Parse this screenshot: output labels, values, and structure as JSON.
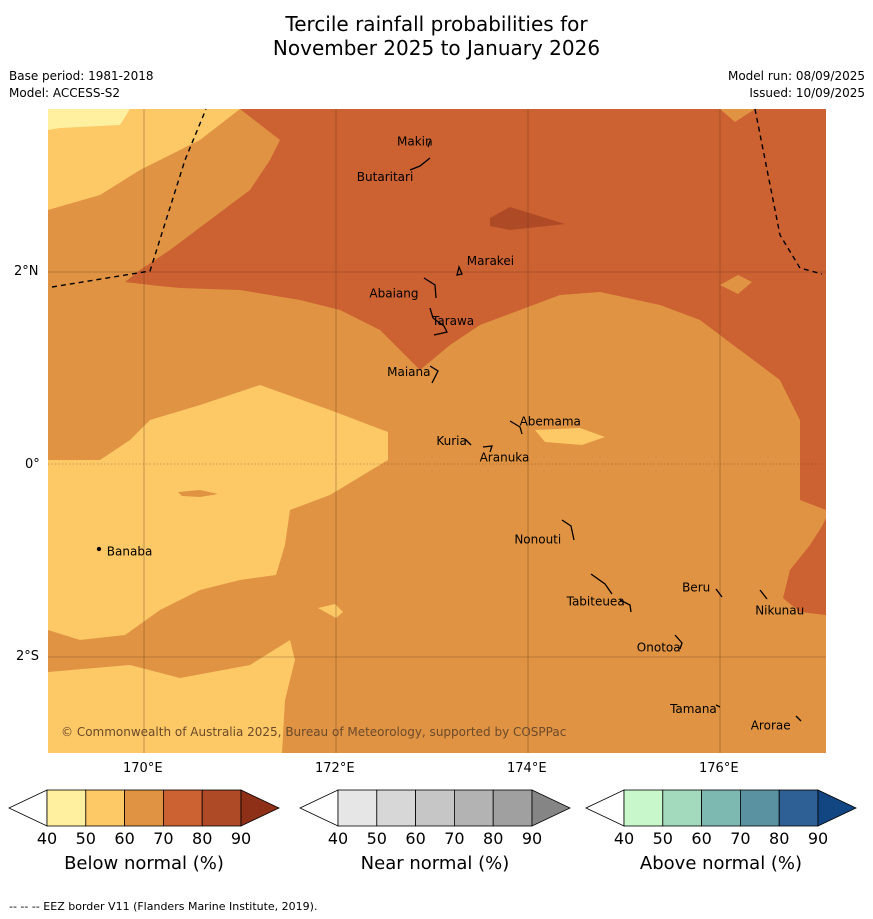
{
  "title_line1": "Tercile rainfall probabilities for",
  "title_line2": "November 2025 to January 2026",
  "meta": {
    "base_period": "Base period: 1981-2018",
    "model": "Model: ACCESS-S2",
    "model_run": "Model run: 08/09/2025",
    "issued": "Issued: 10/09/2025"
  },
  "axes": {
    "lon_ticks": [
      "170°E",
      "172°E",
      "174°E",
      "176°E"
    ],
    "lat_ticks": [
      "2°N",
      "0°",
      "2°S"
    ]
  },
  "places": [
    {
      "name": "Makin",
      "lon": 173.0,
      "lat": 3.35
    },
    {
      "name": "Butaritari",
      "lon": 172.8,
      "lat": 3.05
    },
    {
      "name": "Marakei",
      "lon": 173.3,
      "lat": 2.02
    },
    {
      "name": "Abaiang",
      "lon": 172.9,
      "lat": 1.85
    },
    {
      "name": "Tarawa",
      "lon": 173.0,
      "lat": 1.45
    },
    {
      "name": "Maiana",
      "lon": 172.97,
      "lat": 0.95
    },
    {
      "name": "Abemama",
      "lon": 173.85,
      "lat": 0.4
    },
    {
      "name": "Kuria",
      "lon": 173.42,
      "lat": 0.22
    },
    {
      "name": "Aranuka",
      "lon": 173.6,
      "lat": 0.17
    },
    {
      "name": "Nonouti",
      "lon": 174.42,
      "lat": -0.65
    },
    {
      "name": "Banaba",
      "lon": 169.55,
      "lat": -0.86
    },
    {
      "name": "Tabiteuea",
      "lon": 174.85,
      "lat": -1.35
    },
    {
      "name": "Beru",
      "lon": 175.98,
      "lat": -1.33
    },
    {
      "name": "Nikunau",
      "lon": 176.45,
      "lat": -1.38
    },
    {
      "name": "Onotoa",
      "lon": 175.55,
      "lat": -1.82
    },
    {
      "name": "Tamana",
      "lon": 175.98,
      "lat": -2.5
    },
    {
      "name": "Arorae",
      "lon": 176.82,
      "lat": -2.65
    }
  ],
  "copyright": "© Commonwealth of Australia 2025, Bureau of Meteorology, supported by COSPPac",
  "colorbars": [
    {
      "label": "Below normal (%)",
      "ticks": [
        "40",
        "50",
        "60",
        "70",
        "80",
        "90"
      ],
      "colors": [
        "#ffffff",
        "#fff0a0",
        "#fdc866",
        "#e09343",
        "#cc6131",
        "#ae4a26",
        "#8e3018"
      ]
    },
    {
      "label": "Near normal (%)",
      "ticks": [
        "40",
        "50",
        "60",
        "70",
        "80",
        "90"
      ],
      "colors": [
        "#ffffff",
        "#e6e6e6",
        "#d7d7d7",
        "#c6c6c6",
        "#b3b3b3",
        "#a0a0a0",
        "#858585"
      ]
    },
    {
      "label": "Above normal (%)",
      "ticks": [
        "40",
        "50",
        "60",
        "70",
        "80",
        "90"
      ],
      "colors": [
        "#ffffff",
        "#c8f7cc",
        "#a3d9bc",
        "#7db8b1",
        "#5b92a1",
        "#2e5f95",
        "#124683"
      ]
    }
  ],
  "footer": "--  --  -- EEZ border V11 (Flanders Marine Institute, 2019)."
}
